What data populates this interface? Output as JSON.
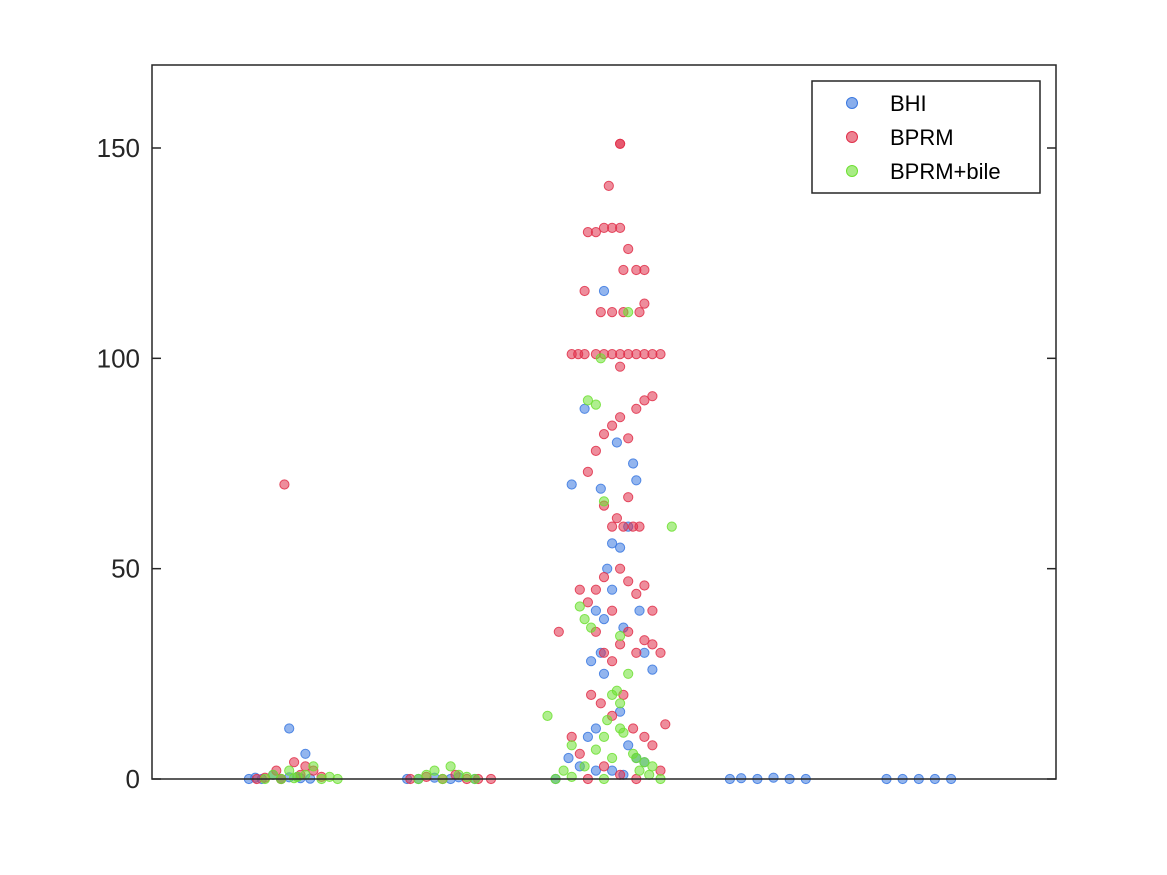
{
  "chart_data": {
    "type": "scatter",
    "title": "",
    "xlabel": "",
    "ylabel": "",
    "xlim": [
      0.2,
      5.8
    ],
    "ylim": [
      0,
      150
    ],
    "y_ticks": [
      0,
      50,
      100,
      150
    ],
    "y_tick_labels": [
      "0",
      "50",
      "100",
      "150"
    ],
    "grid": false,
    "legend_position": "top-right",
    "series": [
      {
        "name": "BHI",
        "color": "#3a78e0",
        "points": [
          [
            0.8,
            0
          ],
          [
            0.84,
            0.3
          ],
          [
            0.88,
            0
          ],
          [
            0.95,
            1
          ],
          [
            1.0,
            0
          ],
          [
            1.05,
            0.4
          ],
          [
            1.1,
            0.5
          ],
          [
            1.12,
            0.2
          ],
          [
            1.18,
            0.1
          ],
          [
            1.05,
            12
          ],
          [
            1.15,
            6
          ],
          [
            1.78,
            0
          ],
          [
            1.85,
            0
          ],
          [
            1.95,
            0.3
          ],
          [
            2.05,
            0
          ],
          [
            2.1,
            0.4
          ],
          [
            2.2,
            0
          ],
          [
            2.7,
            0
          ],
          [
            2.78,
            5
          ],
          [
            2.8,
            70
          ],
          [
            2.88,
            88
          ],
          [
            2.95,
            40
          ],
          [
            2.92,
            28
          ],
          [
            2.98,
            30
          ],
          [
            3.0,
            38
          ],
          [
            3.02,
            50
          ],
          [
            3.05,
            45
          ],
          [
            3.08,
            80
          ],
          [
            3.1,
            55
          ],
          [
            3.12,
            36
          ],
          [
            3.15,
            60
          ],
          [
            3.18,
            75
          ],
          [
            3.2,
            71
          ],
          [
            3.22,
            40
          ],
          [
            3.25,
            30
          ],
          [
            3.3,
            26
          ],
          [
            3.0,
            116
          ],
          [
            2.98,
            69
          ],
          [
            3.05,
            56
          ],
          [
            3.0,
            25
          ],
          [
            2.9,
            10
          ],
          [
            2.95,
            12
          ],
          [
            3.1,
            16
          ],
          [
            3.15,
            8
          ],
          [
            3.2,
            5
          ],
          [
            2.85,
            3
          ],
          [
            3.25,
            4
          ],
          [
            3.05,
            2
          ],
          [
            2.95,
            2
          ],
          [
            3.12,
            1
          ],
          [
            3.78,
            0
          ],
          [
            3.85,
            0.2
          ],
          [
            3.95,
            0
          ],
          [
            4.05,
            0.3
          ],
          [
            4.15,
            0
          ],
          [
            4.25,
            0
          ],
          [
            4.75,
            0
          ],
          [
            4.85,
            0
          ],
          [
            4.95,
            0
          ],
          [
            5.05,
            0
          ],
          [
            5.15,
            0
          ]
        ]
      },
      {
        "name": "BPRM",
        "color": "#e0304a",
        "points": [
          [
            0.85,
            0
          ],
          [
            0.9,
            0.3
          ],
          [
            0.97,
            2
          ],
          [
            1.0,
            0
          ],
          [
            1.02,
            70
          ],
          [
            1.08,
            4
          ],
          [
            1.12,
            1
          ],
          [
            1.15,
            3
          ],
          [
            1.2,
            2
          ],
          [
            1.25,
            0.5
          ],
          [
            1.8,
            0
          ],
          [
            1.9,
            0.5
          ],
          [
            2.0,
            0
          ],
          [
            2.08,
            1
          ],
          [
            2.15,
            0
          ],
          [
            2.22,
            0
          ],
          [
            2.3,
            0
          ],
          [
            2.72,
            35
          ],
          [
            2.8,
            101
          ],
          [
            2.84,
            101
          ],
          [
            2.88,
            101
          ],
          [
            2.95,
            101
          ],
          [
            3.0,
            101
          ],
          [
            3.05,
            101
          ],
          [
            3.1,
            101
          ],
          [
            3.15,
            101
          ],
          [
            3.2,
            101
          ],
          [
            3.25,
            101
          ],
          [
            3.3,
            101
          ],
          [
            3.35,
            101
          ],
          [
            2.9,
            130
          ],
          [
            2.95,
            130
          ],
          [
            3.0,
            131
          ],
          [
            3.05,
            131
          ],
          [
            3.1,
            131
          ],
          [
            3.15,
            126
          ],
          [
            3.12,
            121
          ],
          [
            3.2,
            121
          ],
          [
            3.25,
            121
          ],
          [
            3.03,
            141
          ],
          [
            3.1,
            151
          ],
          [
            3.1,
            151
          ],
          [
            2.98,
            111
          ],
          [
            3.05,
            111
          ],
          [
            3.12,
            111
          ],
          [
            3.22,
            111
          ],
          [
            3.25,
            113
          ],
          [
            2.88,
            116
          ],
          [
            2.9,
            73
          ],
          [
            2.95,
            78
          ],
          [
            3.0,
            82
          ],
          [
            3.05,
            84
          ],
          [
            3.1,
            86
          ],
          [
            3.15,
            81
          ],
          [
            3.2,
            88
          ],
          [
            3.25,
            90
          ],
          [
            3.3,
            91
          ],
          [
            3.1,
            98
          ],
          [
            3.05,
            60
          ],
          [
            3.12,
            60
          ],
          [
            3.18,
            60
          ],
          [
            3.22,
            60
          ],
          [
            3.0,
            65
          ],
          [
            3.08,
            62
          ],
          [
            3.15,
            67
          ],
          [
            2.95,
            45
          ],
          [
            3.0,
            48
          ],
          [
            3.05,
            40
          ],
          [
            3.1,
            50
          ],
          [
            3.15,
            47
          ],
          [
            3.2,
            44
          ],
          [
            3.25,
            46
          ],
          [
            3.3,
            40
          ],
          [
            2.85,
            45
          ],
          [
            2.9,
            42
          ],
          [
            2.95,
            35
          ],
          [
            3.0,
            30
          ],
          [
            3.05,
            28
          ],
          [
            3.1,
            32
          ],
          [
            3.15,
            35
          ],
          [
            3.2,
            30
          ],
          [
            3.25,
            33
          ],
          [
            3.3,
            32
          ],
          [
            3.35,
            30
          ],
          [
            2.92,
            20
          ],
          [
            2.98,
            18
          ],
          [
            3.05,
            15
          ],
          [
            3.12,
            20
          ],
          [
            3.18,
            12
          ],
          [
            3.25,
            10
          ],
          [
            3.3,
            8
          ],
          [
            3.38,
            13
          ],
          [
            2.8,
            10
          ],
          [
            2.85,
            6
          ],
          [
            3.35,
            2
          ],
          [
            3.0,
            3
          ],
          [
            3.1,
            1
          ],
          [
            2.9,
            0
          ],
          [
            3.2,
            0
          ]
        ]
      },
      {
        "name": "BPRM+bile",
        "color": "#6ee033",
        "points": [
          [
            0.9,
            0
          ],
          [
            0.95,
            1
          ],
          [
            1.0,
            0
          ],
          [
            1.05,
            2
          ],
          [
            1.1,
            0.5
          ],
          [
            1.15,
            1
          ],
          [
            1.2,
            3
          ],
          [
            1.25,
            0
          ],
          [
            1.3,
            0.5
          ],
          [
            1.35,
            0
          ],
          [
            1.08,
            0.2
          ],
          [
            1.85,
            0
          ],
          [
            1.9,
            1
          ],
          [
            1.95,
            2
          ],
          [
            2.0,
            0
          ],
          [
            2.05,
            3
          ],
          [
            2.1,
            1
          ],
          [
            2.15,
            0.5
          ],
          [
            2.2,
            0
          ],
          [
            2.65,
            15
          ],
          [
            2.75,
            2
          ],
          [
            2.8,
            8
          ],
          [
            2.85,
            41
          ],
          [
            2.88,
            38
          ],
          [
            2.9,
            90
          ],
          [
            2.92,
            36
          ],
          [
            2.95,
            89
          ],
          [
            2.98,
            100
          ],
          [
            3.0,
            66
          ],
          [
            3.05,
            20
          ],
          [
            3.08,
            21
          ],
          [
            3.1,
            18
          ],
          [
            3.12,
            11
          ],
          [
            3.15,
            111
          ],
          [
            3.1,
            34
          ],
          [
            3.18,
            6
          ],
          [
            3.2,
            5
          ],
          [
            3.25,
            4
          ],
          [
            3.3,
            3
          ],
          [
            3.42,
            60
          ],
          [
            3.0,
            10
          ],
          [
            2.95,
            7
          ],
          [
            3.05,
            5
          ],
          [
            3.02,
            14
          ],
          [
            3.1,
            12
          ],
          [
            3.15,
            25
          ],
          [
            2.88,
            3
          ],
          [
            3.22,
            2
          ],
          [
            3.28,
            1
          ],
          [
            3.35,
            0
          ],
          [
            2.7,
            0
          ],
          [
            2.8,
            0.5
          ],
          [
            3.0,
            0
          ]
        ]
      }
    ]
  }
}
